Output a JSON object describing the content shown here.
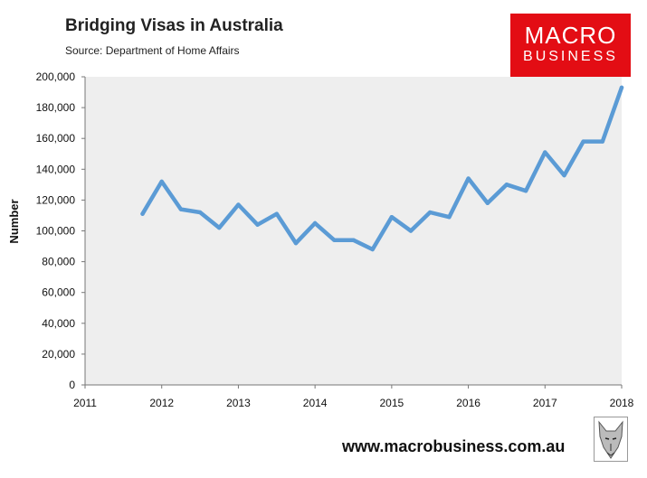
{
  "header": {
    "title": "Bridging Visas in Australia",
    "subtitle": "Source: Department of Home Affairs"
  },
  "logo": {
    "line1": "MACRO",
    "line2": "BUSINESS"
  },
  "footer": {
    "url": "www.macrobusiness.com.au"
  },
  "colors": {
    "line": "#5b9bd5",
    "plot_bg": "#eeeeee",
    "logo_bg": "#e30d14"
  },
  "chart_data": {
    "type": "line",
    "title": "Bridging Visas in Australia",
    "xlabel": "",
    "ylabel": "Number",
    "xlim": [
      2011,
      2018
    ],
    "ylim": [
      0,
      200000
    ],
    "x_ticks": [
      "2011",
      "2012",
      "2013",
      "2014",
      "2015",
      "2016",
      "2017",
      "2018"
    ],
    "y_ticks": [
      "0",
      "20,000",
      "40,000",
      "60,000",
      "80,000",
      "100,000",
      "120,000",
      "140,000",
      "160,000",
      "180,000",
      "200,000"
    ],
    "grid": false,
    "series": [
      {
        "x": [
          2011.75,
          2012.0,
          2012.25,
          2012.5,
          2012.75,
          2013.0,
          2013.25,
          2013.5,
          2013.75,
          2014.0,
          2014.25,
          2014.5,
          2014.75,
          2015.0,
          2015.25,
          2015.5,
          2015.75,
          2016.0,
          2016.25,
          2016.5,
          2016.75,
          2017.0,
          2017.25,
          2017.5,
          2017.75,
          2018.0
        ],
        "values": [
          111000,
          132000,
          114000,
          112000,
          102000,
          117000,
          104000,
          111000,
          92000,
          105000,
          94000,
          94000,
          88000,
          109000,
          100000,
          112000,
          109000,
          134000,
          118000,
          130000,
          126000,
          151000,
          136000,
          158000,
          158000,
          193000
        ]
      }
    ]
  }
}
